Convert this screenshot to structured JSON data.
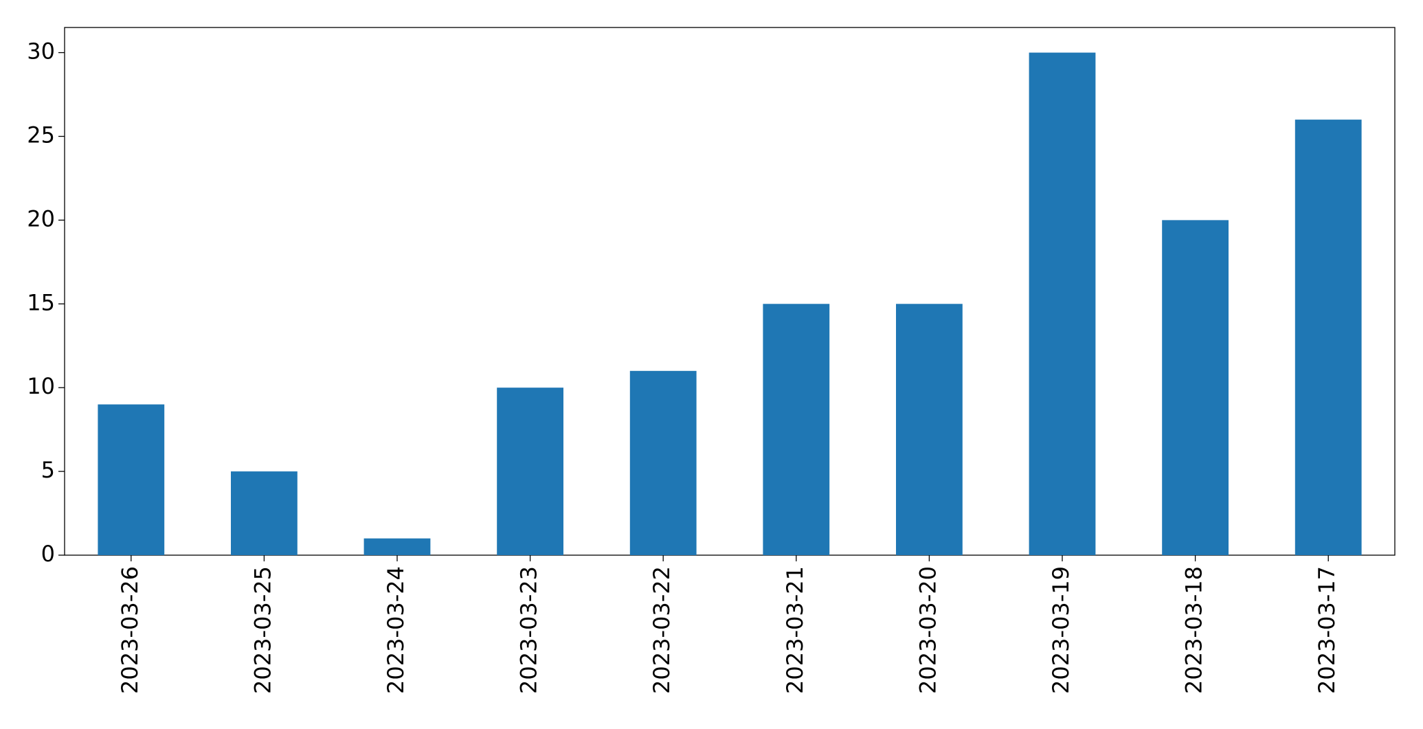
{
  "chart_data": {
    "type": "bar",
    "categories": [
      "2023-03-26",
      "2023-03-25",
      "2023-03-24",
      "2023-03-23",
      "2023-03-22",
      "2023-03-21",
      "2023-03-20",
      "2023-03-19",
      "2023-03-18",
      "2023-03-17"
    ],
    "values": [
      9,
      5,
      1,
      10,
      11,
      15,
      15,
      30,
      20,
      26
    ],
    "color": "#1f77b4",
    "ylim": [
      0,
      31.5
    ],
    "yticks": [
      0,
      5,
      10,
      15,
      20,
      25,
      30
    ],
    "grid": false
  }
}
